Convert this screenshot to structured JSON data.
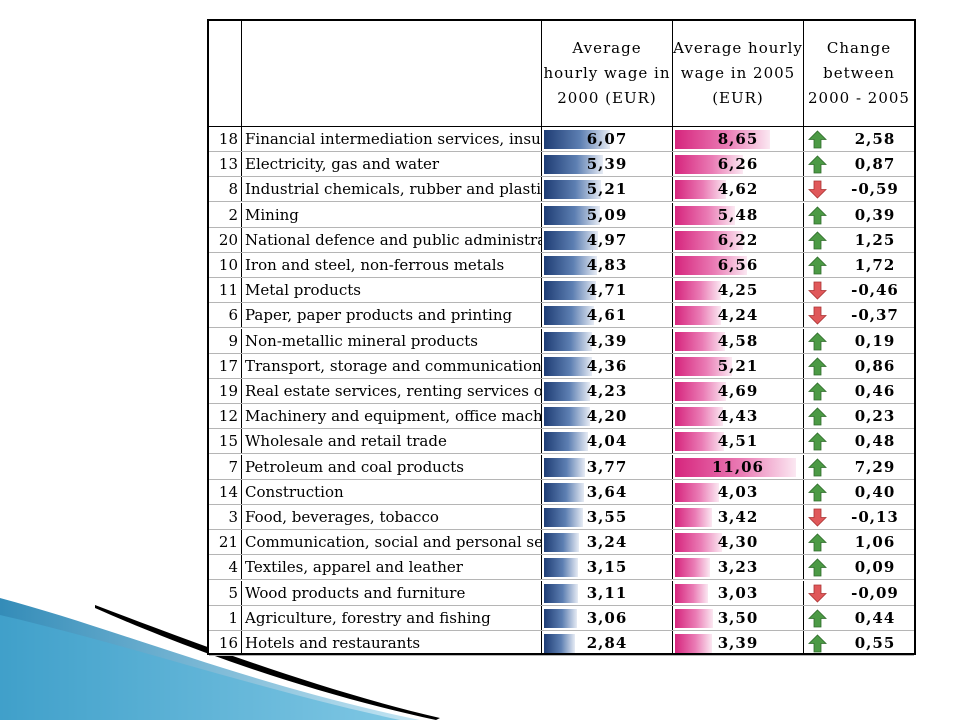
{
  "headers": {
    "wage_2000": "Average\nhourly wage in\n2000 (EUR)",
    "wage_2005": "Average hourly\nwage in 2005\n(EUR)",
    "change": "Change\nbetween\n2000 - 2005"
  },
  "scale": {
    "wage_max": 11.06
  },
  "colors": {
    "bar_2000": "#2a4a80",
    "bar_2005": "#d6257d",
    "arrow_up": "#4c9a45",
    "arrow_down": "#e0585a"
  },
  "rows": [
    {
      "rank": "18",
      "sector": "Financial intermediation services, insurance",
      "w2000": "6,07",
      "w2005": "8,65",
      "change": "2,58",
      "dir": "up"
    },
    {
      "rank": "13",
      "sector": "Electricity, gas and water",
      "w2000": "5,39",
      "w2005": "6,26",
      "change": "0,87",
      "dir": "up"
    },
    {
      "rank": "8",
      "sector": "Industrial chemicals, rubber and plastic products",
      "w2000": "5,21",
      "w2005": "4,62",
      "change": "-0,59",
      "dir": "down"
    },
    {
      "rank": "2",
      "sector": "Mining",
      "w2000": "5,09",
      "w2005": "5,48",
      "change": "0,39",
      "dir": "up"
    },
    {
      "rank": "20",
      "sector": "National defence and public administration",
      "w2000": "4,97",
      "w2005": "6,22",
      "change": "1,25",
      "dir": "up"
    },
    {
      "rank": "10",
      "sector": "Iron and steel, non-ferrous metals",
      "w2000": "4,83",
      "w2005": "6,56",
      "change": "1,72",
      "dir": "up"
    },
    {
      "rank": "11",
      "sector": "Metal products",
      "w2000": "4,71",
      "w2005": "4,25",
      "change": "-0,46",
      "dir": "down"
    },
    {
      "rank": "6",
      "sector": "Paper, paper products and printing",
      "w2000": "4,61",
      "w2005": "4,24",
      "change": "-0,37",
      "dir": "down"
    },
    {
      "rank": "9",
      "sector": "Non-metallic mineral products",
      "w2000": "4,39",
      "w2005": "4,58",
      "change": "0,19",
      "dir": "up"
    },
    {
      "rank": "17",
      "sector": "Transport, storage and communication",
      "w2000": "4,36",
      "w2005": "5,21",
      "change": "0,86",
      "dir": "up"
    },
    {
      "rank": "19",
      "sector": "Real estate services, renting services of",
      "w2000": "4,23",
      "w2005": "4,69",
      "change": "0,46",
      "dir": "up"
    },
    {
      "rank": "12",
      "sector": "Machinery and equipment, office machinery",
      "w2000": "4,20",
      "w2005": "4,43",
      "change": "0,23",
      "dir": "up"
    },
    {
      "rank": "15",
      "sector": "Wholesale and retail trade",
      "w2000": "4,04",
      "w2005": "4,51",
      "change": "0,48",
      "dir": "up"
    },
    {
      "rank": "7",
      "sector": "Petroleum and coal products",
      "w2000": "3,77",
      "w2005": "11,06",
      "change": "7,29",
      "dir": "up"
    },
    {
      "rank": "14",
      "sector": "Construction",
      "w2000": "3,64",
      "w2005": "4,03",
      "change": "0,40",
      "dir": "up"
    },
    {
      "rank": "3",
      "sector": "Food, beverages, tobacco",
      "w2000": "3,55",
      "w2005": "3,42",
      "change": "-0,13",
      "dir": "down"
    },
    {
      "rank": "21",
      "sector": "Communication, social and personal services",
      "w2000": "3,24",
      "w2005": "4,30",
      "change": "1,06",
      "dir": "up"
    },
    {
      "rank": "4",
      "sector": "Textiles, apparel and leather",
      "w2000": "3,15",
      "w2005": "3,23",
      "change": "0,09",
      "dir": "up"
    },
    {
      "rank": "5",
      "sector": "Wood products and furniture",
      "w2000": "3,11",
      "w2005": "3,03",
      "change": "-0,09",
      "dir": "down"
    },
    {
      "rank": "1",
      "sector": "Agriculture, forestry and fishing",
      "w2000": "3,06",
      "w2005": "3,50",
      "change": "0,44",
      "dir": "up"
    },
    {
      "rank": "16",
      "sector": "Hotels and restaurants",
      "w2000": "2,84",
      "w2005": "3,39",
      "change": "0,55",
      "dir": "up"
    }
  ]
}
